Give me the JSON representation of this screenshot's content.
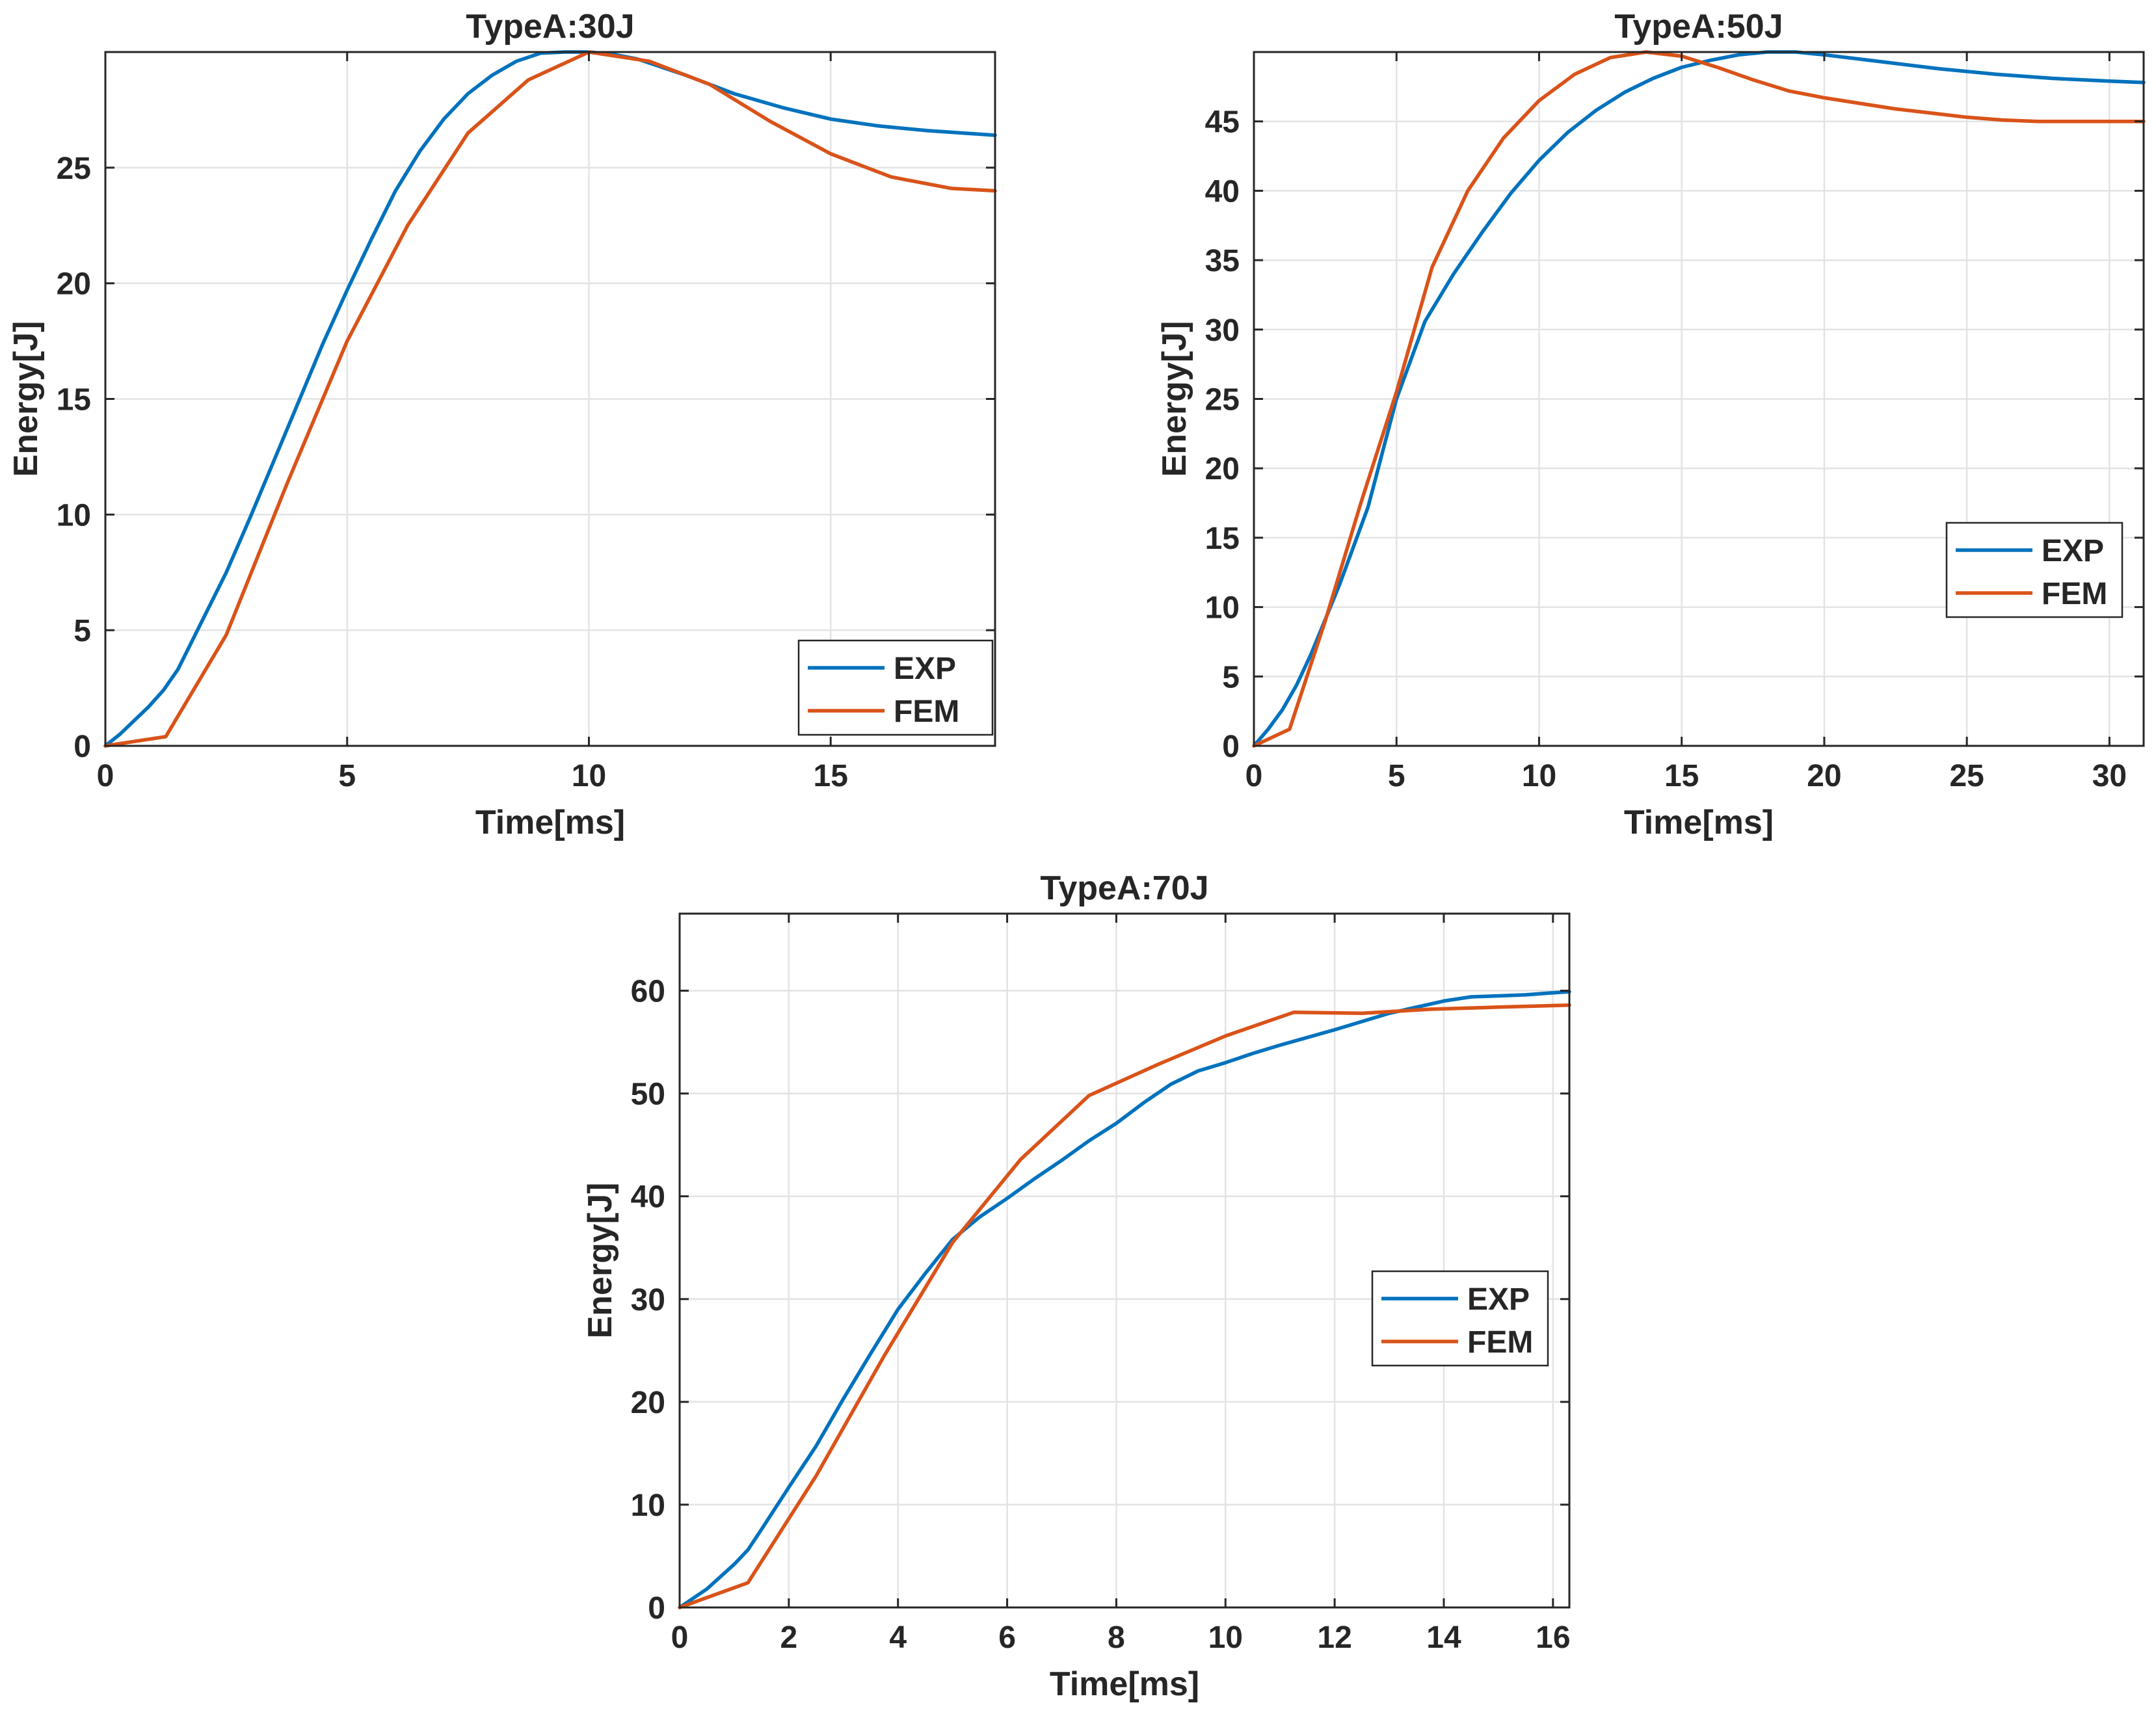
{
  "colors": {
    "EXP": "#0072BD",
    "FEM": "#D95319"
  },
  "chart_data": [
    {
      "type": "line",
      "title": "TypeA:30J",
      "xlabel": "Time[ms]",
      "ylabel": "Energy[J]",
      "xlim": [
        0,
        18.4
      ],
      "ylim": [
        0,
        30
      ],
      "xticks": [
        0,
        5,
        10,
        15
      ],
      "yticks": [
        0,
        5,
        10,
        15,
        20,
        25
      ],
      "legend": "bottom-right",
      "series": [
        {
          "name": "EXP",
          "x": [
            0,
            0.3,
            0.6,
            0.9,
            1.2,
            1.5,
            2,
            2.5,
            3,
            3.5,
            4,
            4.5,
            5,
            5.5,
            6,
            6.5,
            7,
            7.5,
            8,
            8.5,
            9,
            9.5,
            10,
            10.5,
            11,
            12,
            13,
            14,
            15,
            16,
            17,
            18.4
          ],
          "y": [
            0,
            0.5,
            1.1,
            1.7,
            2.4,
            3.3,
            5.4,
            7.5,
            9.9,
            12.4,
            14.9,
            17.4,
            19.7,
            21.9,
            24.0,
            25.7,
            27.1,
            28.2,
            29.0,
            29.6,
            29.95,
            30.0,
            30.0,
            29.9,
            29.7,
            29.0,
            28.2,
            27.6,
            27.1,
            26.8,
            26.6,
            26.4
          ]
        },
        {
          "name": "FEM",
          "x": [
            0,
            1.25,
            2.5,
            3.75,
            5,
            6.25,
            7.5,
            8.75,
            10,
            11.25,
            12.5,
            13.75,
            15,
            16.25,
            17.5,
            18.4
          ],
          "y": [
            0,
            0.4,
            4.8,
            11.3,
            17.5,
            22.5,
            26.5,
            28.8,
            30.0,
            29.6,
            28.6,
            27.0,
            25.6,
            24.6,
            24.1,
            24.0
          ]
        }
      ]
    },
    {
      "type": "line",
      "title": "TypeA:50J",
      "xlabel": "Time[ms]",
      "ylabel": "Energy[J]",
      "xlim": [
        0,
        31.2
      ],
      "ylim": [
        0,
        50
      ],
      "xticks": [
        0,
        5,
        10,
        15,
        20,
        25,
        30
      ],
      "yticks": [
        0,
        5,
        10,
        15,
        20,
        25,
        30,
        35,
        40,
        45
      ],
      "legend": "right",
      "series": [
        {
          "name": "EXP",
          "x": [
            0,
            0.5,
            1,
            1.5,
            2,
            3,
            4,
            5,
            6,
            7,
            8,
            9,
            10,
            11,
            12,
            13,
            14,
            15,
            16,
            17,
            18,
            19,
            20,
            22,
            24,
            26,
            28,
            30,
            31.2
          ],
          "y": [
            0,
            1.2,
            2.6,
            4.4,
            6.6,
            11.6,
            17.2,
            25.0,
            30.6,
            34.0,
            37.0,
            39.8,
            42.2,
            44.2,
            45.8,
            47.1,
            48.1,
            48.9,
            49.4,
            49.8,
            50.0,
            50.0,
            49.8,
            49.3,
            48.8,
            48.4,
            48.1,
            47.9,
            47.8
          ]
        },
        {
          "name": "FEM",
          "x": [
            0,
            1.25,
            2.5,
            3.75,
            5,
            6.25,
            7.5,
            8.75,
            10,
            11.25,
            12.5,
            13.75,
            15,
            16.25,
            17.5,
            18.75,
            20,
            21.25,
            22.5,
            23.75,
            25,
            26.25,
            27.5,
            28.75,
            30,
            31.2
          ],
          "y": [
            0,
            1.2,
            9.0,
            17.5,
            25.5,
            34.5,
            40.0,
            43.8,
            46.5,
            48.4,
            49.6,
            50.0,
            49.7,
            48.9,
            48.0,
            47.2,
            46.7,
            46.3,
            45.9,
            45.6,
            45.3,
            45.1,
            45.0,
            45.0,
            45.0,
            45.0
          ]
        }
      ]
    },
    {
      "type": "line",
      "title": "TypeA:70J",
      "xlabel": "Time[ms]",
      "ylabel": "Energy[J]",
      "xlim": [
        0,
        16.3
      ],
      "ylim": [
        0,
        67.5
      ],
      "xticks": [
        0,
        2,
        4,
        6,
        8,
        10,
        12,
        14,
        16
      ],
      "yticks": [
        0,
        10,
        20,
        30,
        40,
        50,
        60
      ],
      "legend": "right",
      "series": [
        {
          "name": "EXP",
          "x": [
            0,
            0.5,
            1,
            1.25,
            1.5,
            2,
            2.5,
            3,
            3.5,
            4,
            4.5,
            5,
            5.5,
            6,
            6.5,
            7,
            7.5,
            8,
            8.5,
            9,
            9.5,
            10,
            10.5,
            11,
            12,
            13,
            14,
            14.5,
            15,
            15.5,
            16,
            16.3
          ],
          "y": [
            0,
            1.8,
            4.2,
            5.6,
            7.6,
            11.7,
            15.7,
            20.3,
            24.7,
            29.0,
            32.5,
            35.8,
            38.0,
            39.8,
            41.7,
            43.5,
            45.4,
            47.1,
            49.1,
            50.9,
            52.2,
            53.0,
            53.9,
            54.7,
            56.2,
            57.8,
            59.0,
            59.4,
            59.5,
            59.6,
            59.8,
            59.9
          ]
        },
        {
          "name": "FEM",
          "x": [
            0,
            1.25,
            2.5,
            3.75,
            5,
            6.25,
            7.5,
            8.75,
            10,
            11.25,
            12.5,
            13.75,
            15,
            16.3
          ],
          "y": [
            0,
            2.4,
            12.8,
            24.5,
            35.5,
            43.6,
            49.8,
            52.8,
            55.6,
            57.9,
            57.8,
            58.2,
            58.4,
            58.6
          ]
        }
      ]
    }
  ]
}
